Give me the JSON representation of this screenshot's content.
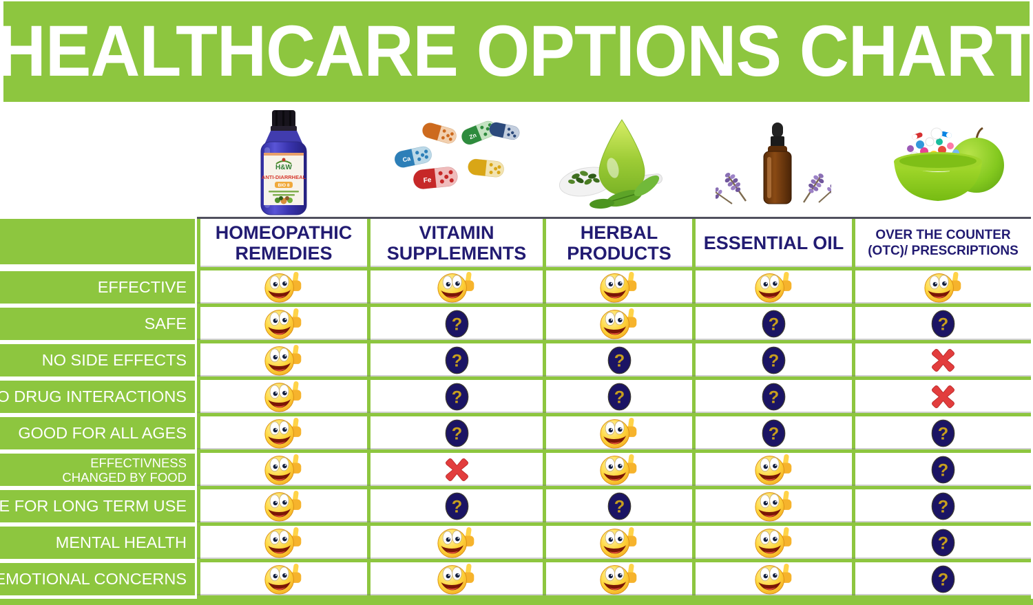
{
  "title": "HEALTHCARE OPTIONS CHART",
  "colors": {
    "green": "#8dc63f",
    "header_navy": "#221b72",
    "question_circle_navy": "#1b1464",
    "question_mark_gold": "#c79f1e",
    "cross_red": "#e23d3d"
  },
  "products": {
    "homeopathic_bottle": {
      "brand": "H&W",
      "name": "ANTI-DIARRHEAL",
      "badge": "BIO 8"
    },
    "vitamin_capsule_labels": [
      "Ca",
      "Zn",
      "Fe"
    ]
  },
  "icons": {
    "smiley": {
      "name": "smiley-thumbs-up-icon",
      "meaning": "yes"
    },
    "question": {
      "name": "question-mark-icon",
      "meaning": "uncertain"
    },
    "cross": {
      "name": "red-x-icon",
      "meaning": "no"
    }
  },
  "table": {
    "columns": [
      {
        "label": "HOMEOPATHIC REMEDIES",
        "image": "homeopathic-remedy-bottle"
      },
      {
        "label": "VITAMIN SUPPLEMENTS",
        "image": "vitamin-capsules"
      },
      {
        "label": "HERBAL PRODUCTS",
        "image": "herbal-leaves-oil-spoon"
      },
      {
        "label": "ESSENTIAL OIL",
        "image": "essential-oil-bottle-lavender"
      },
      {
        "label": "OVER THE COUNTER (OTC)/ PRESCRIPTIONS",
        "image": "pill-bowl-and-apple"
      }
    ],
    "rows": [
      {
        "label": "EFFECTIVE",
        "cells": [
          "smiley",
          "smiley",
          "smiley",
          "smiley",
          "smiley"
        ]
      },
      {
        "label": "SAFE",
        "cells": [
          "smiley",
          "question",
          "smiley",
          "question",
          "question"
        ]
      },
      {
        "label": "NO SIDE EFFECTS",
        "cells": [
          "smiley",
          "question",
          "question",
          "question",
          "cross"
        ]
      },
      {
        "label": "NO DRUG INTERACTIONS",
        "cells": [
          "smiley",
          "question",
          "question",
          "question",
          "cross"
        ]
      },
      {
        "label": "GOOD FOR ALL AGES",
        "cells": [
          "smiley",
          "question",
          "smiley",
          "question",
          "question"
        ]
      },
      {
        "label": "EFFECTIVNESS CHANGED BY FOOD",
        "cells": [
          "smiley",
          "cross",
          "smiley",
          "smiley",
          "question"
        ]
      },
      {
        "label": "SAFE FOR LONG TERM USE",
        "cells": [
          "smiley",
          "question",
          "question",
          "smiley",
          "question"
        ]
      },
      {
        "label": "MENTAL HEALTH",
        "cells": [
          "smiley",
          "smiley",
          "smiley",
          "smiley",
          "question"
        ]
      },
      {
        "label": "EMOTIONAL CONCERNS",
        "cells": [
          "smiley",
          "smiley",
          "smiley",
          "smiley",
          "question"
        ]
      }
    ]
  },
  "chart_data": {
    "type": "table",
    "title": "HEALTHCARE OPTIONS CHART",
    "columns": [
      "HOMEOPATHIC REMEDIES",
      "VITAMIN SUPPLEMENTS",
      "HERBAL PRODUCTS",
      "ESSENTIAL OIL",
      "OVER THE COUNTER (OTC)/ PRESCRIPTIONS"
    ],
    "row_labels": [
      "EFFECTIVE",
      "SAFE",
      "NO SIDE EFFECTS",
      "NO DRUG INTERACTIONS",
      "GOOD FOR ALL AGES",
      "EFFECTIVNESS CHANGED BY FOOD",
      "SAFE FOR LONG TERM USE",
      "MENTAL HEALTH",
      "EMOTIONAL CONCERNS"
    ],
    "cell_values": [
      [
        "yes",
        "yes",
        "yes",
        "yes",
        "yes"
      ],
      [
        "yes",
        "uncertain",
        "yes",
        "uncertain",
        "uncertain"
      ],
      [
        "yes",
        "uncertain",
        "uncertain",
        "uncertain",
        "no"
      ],
      [
        "yes",
        "uncertain",
        "uncertain",
        "uncertain",
        "no"
      ],
      [
        "yes",
        "uncertain",
        "yes",
        "uncertain",
        "uncertain"
      ],
      [
        "yes",
        "no",
        "yes",
        "yes",
        "uncertain"
      ],
      [
        "yes",
        "uncertain",
        "uncertain",
        "yes",
        "uncertain"
      ],
      [
        "yes",
        "yes",
        "yes",
        "yes",
        "uncertain"
      ],
      [
        "yes",
        "yes",
        "yes",
        "yes",
        "uncertain"
      ]
    ],
    "legend": {
      "yes": "smiley with thumbs up",
      "uncertain": "gold question mark in navy circle",
      "no": "red X"
    }
  }
}
